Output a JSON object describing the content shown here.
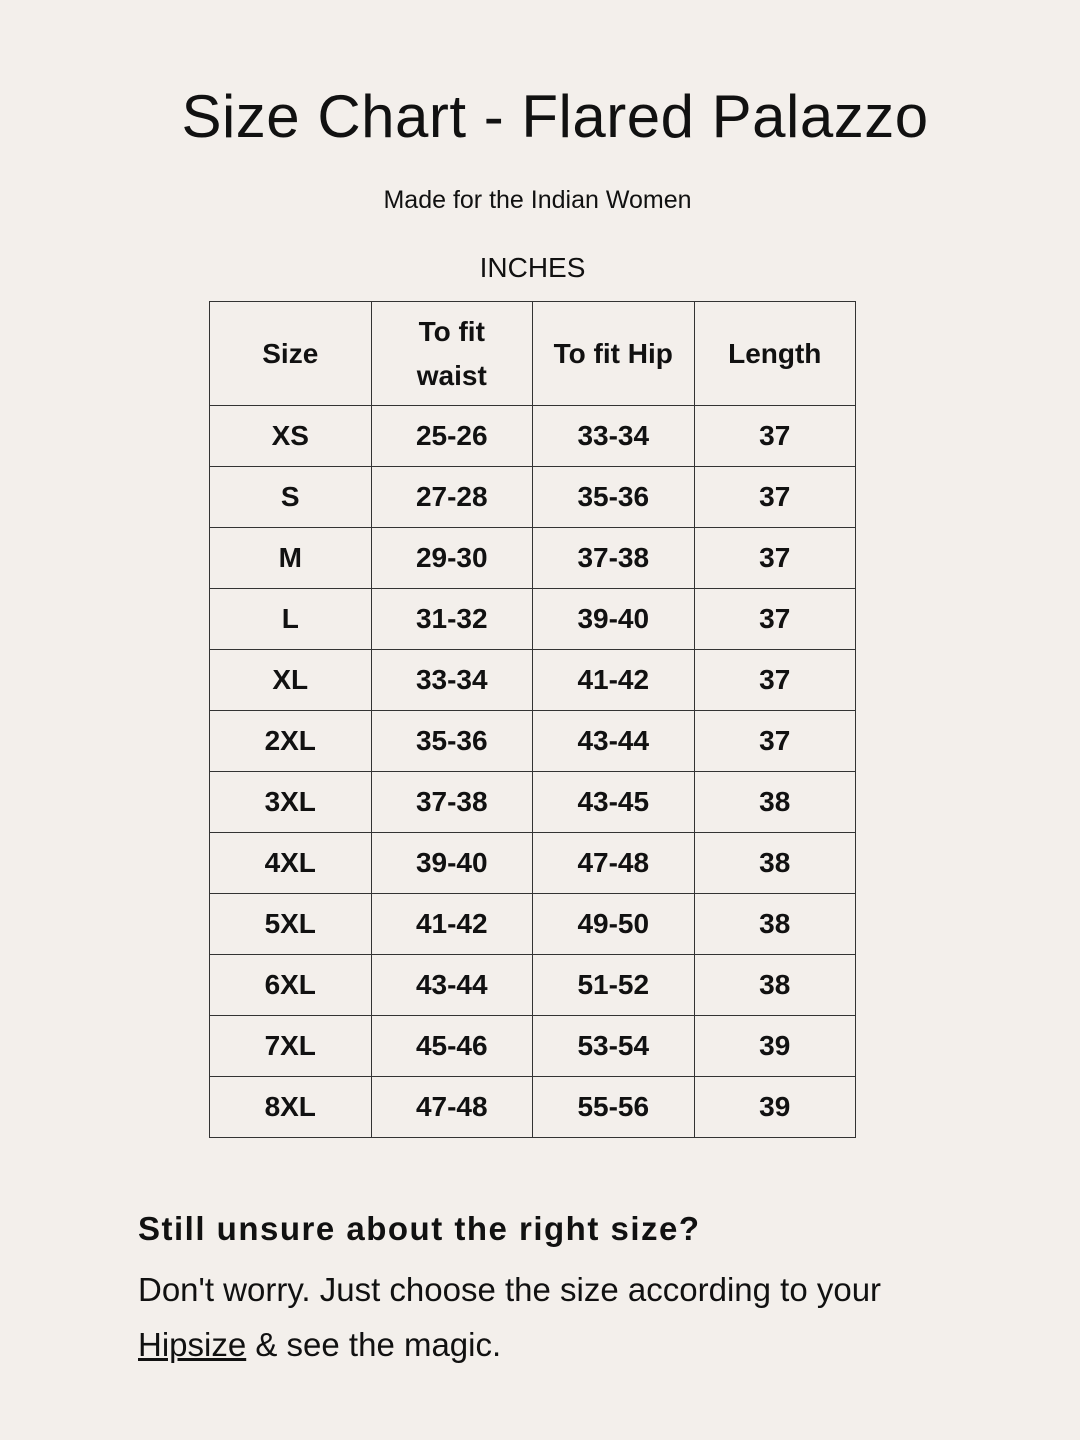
{
  "title": "Size Chart - Flared Palazzo",
  "subtitle": "Made for the Indian Women",
  "unit": "INCHES",
  "table": {
    "headers": [
      "Size",
      "To fit waist",
      "To fit Hip",
      "Length"
    ],
    "rows": [
      [
        "XS",
        "25-26",
        "33-34",
        "37"
      ],
      [
        "S",
        "27-28",
        "35-36",
        "37"
      ],
      [
        "M",
        "29-30",
        "37-38",
        "37"
      ],
      [
        "L",
        "31-32",
        "39-40",
        "37"
      ],
      [
        "XL",
        "33-34",
        "41-42",
        "37"
      ],
      [
        "2XL",
        "35-36",
        "43-44",
        "37"
      ],
      [
        "3XL",
        "37-38",
        "43-45",
        "38"
      ],
      [
        "4XL",
        "39-40",
        "47-48",
        "38"
      ],
      [
        "5XL",
        "41-42",
        "49-50",
        "38"
      ],
      [
        "6XL",
        "43-44",
        "51-52",
        "38"
      ],
      [
        "7XL",
        "45-46",
        "53-54",
        "39"
      ],
      [
        "8XL",
        "47-48",
        "55-56",
        "39"
      ]
    ]
  },
  "footer": {
    "question": "Still unsure about the right size?",
    "text_before": "Don't worry. Just choose the size according to your ",
    "link": "Hipsize",
    "text_after": " & see the magic."
  }
}
